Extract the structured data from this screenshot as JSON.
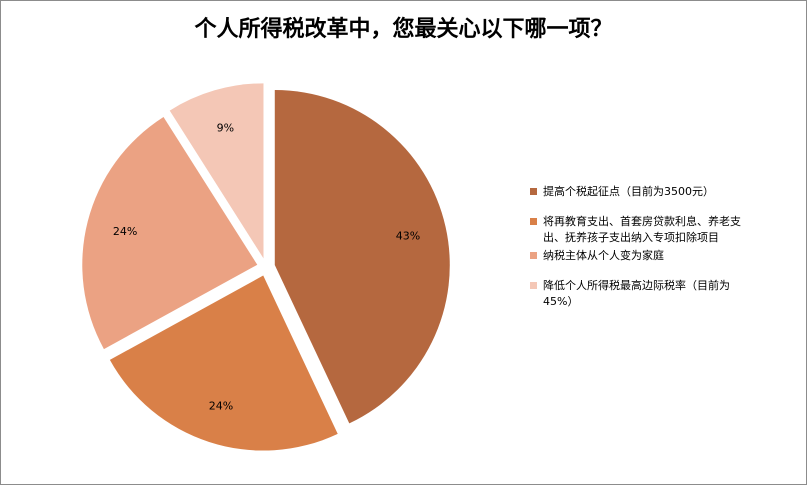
{
  "chart_data": {
    "type": "pie",
    "title": "个人所得税改革中，您最关心以下哪一项？",
    "categories": [
      "提高个税起征点（目前为3500元）",
      "将再教育支出、首套房贷款利息、养老支出、抚养孩子支出纳入专项扣除项目",
      "纳税主体从个人变为家庭",
      "降低个人所得税最高边际税率（目前为45%）"
    ],
    "values": [
      43,
      24,
      24,
      9
    ],
    "labels": [
      "43%",
      "24%",
      "24%",
      "9%"
    ],
    "colors": [
      "#B5683F",
      "#D98048",
      "#EBA283",
      "#F4C7B6"
    ],
    "legend_position": "right",
    "exploded": true
  },
  "legend": {
    "lines": [
      [
        "提高个税起征点（目前为3500元）"
      ],
      [
        "将再教育支出、首套房贷款利息、养老支",
        "出、抚养孩子支出纳入专项扣除项目"
      ],
      [
        "纳税主体从个人变为家庭"
      ],
      [
        "降低个人所得税最高边际税率（目前为",
        "45%）"
      ]
    ]
  }
}
